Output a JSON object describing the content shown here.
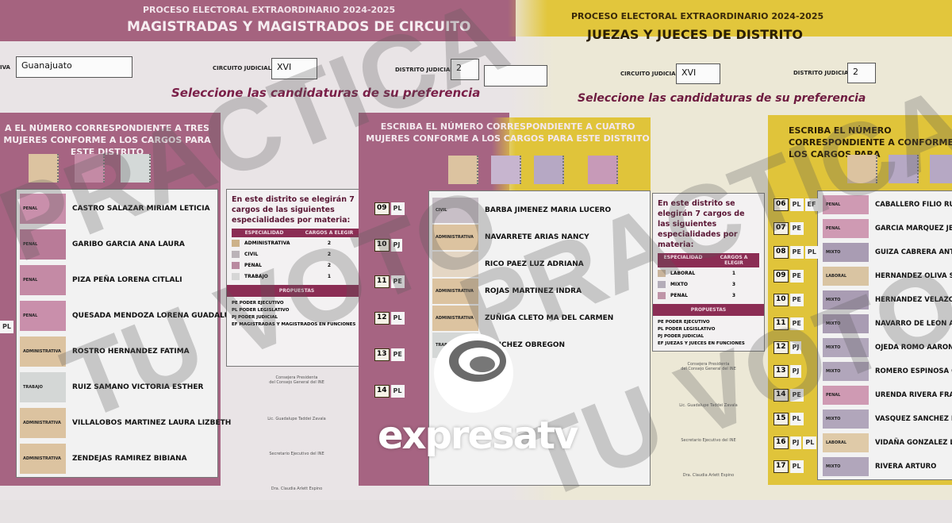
{
  "left_ballot": {
    "process": "PROCESO ELECTORAL EXTRAORDINARIO 2024-2025",
    "title": "MAGISTRADAS Y MAGISTRADOS DE CIRCUITO",
    "entity_label_fragment": "IVA",
    "entity_value": "Guanajuato",
    "circuit_label": "CIRCUITO JUDICIAL",
    "circuit_value": "XVI",
    "district_label": "DISTRITO JUDICIAL",
    "district_value": "2",
    "instruction": "Seleccione las candidaturas de su preferencia",
    "panel_heading": "A EL NÚMERO CORRESPONDIENTE A TRES MUJERES CONFORME A LOS CARGOS PARA ESTE DISTRITO",
    "side_fragment": "PL",
    "candidates": [
      {
        "specialty": "PENAL",
        "name": "CASTRO SALAZAR MIRIAM LETICIA",
        "color": "#c98fab"
      },
      {
        "specialty": "PENAL",
        "name": "GARIBO GARCIA ANA LAURA",
        "color": "#b97b98"
      },
      {
        "specialty": "PENAL",
        "name": "PIZA PEÑA LORENA CITLALI",
        "color": "#c48aa5"
      },
      {
        "specialty": "PENAL",
        "name": "QUESADA MENDOZA LORENA GUADALUPE",
        "color": "#c98fab"
      },
      {
        "specialty": "ADMINISTRATIVA",
        "name": "ROSTRO HERNANDEZ FATIMA",
        "color": "#dcc3a0"
      },
      {
        "specialty": "TRABAJO",
        "name": "RUIZ SAMANO VICTORIA ESTHER",
        "color": "#d4d7d6"
      },
      {
        "specialty": "ADMINISTRATIVA",
        "name": "VILLALOBOS MARTINEZ LAURA LIZBETH",
        "color": "#dcc3a0"
      },
      {
        "specialty": "ADMINISTRATIVA",
        "name": "ZENDEJAS RAMIREZ BIBIANA",
        "color": "#dcc3a0"
      }
    ],
    "info": {
      "text": "En este distrito se elegirán 7 cargos de las siguientes especialidades por materia:",
      "col1": "ESPECIALIDAD",
      "col2": "CARGOS A ELEGIR",
      "rows": [
        {
          "name": "ADMINISTRATIVA",
          "count": "2",
          "color": "#cdb28a"
        },
        {
          "name": "CIVIL",
          "count": "2",
          "color": "#bbb3b8"
        },
        {
          "name": "PENAL",
          "count": "2",
          "color": "#b98aa0"
        },
        {
          "name": "TRABAJO",
          "count": "1",
          "color": "#d6d6d6"
        }
      ],
      "proposals_label": "PROPUESTAS",
      "proposals": [
        "PE  PODER EJECUTIVO",
        "PL  PODER LEGISLATIVO",
        "PJ  PODER JUDICIAL",
        "EF  MAGISTRADAS Y MAGISTRADOS EN FUNCIONES"
      ]
    },
    "signatures": [
      "Consejera Presidenta",
      "del Consejo General del INE",
      "Lic. Guadalupe Taddei Zavala",
      "Secretario Ejecutivo del INE",
      "Dra. Claudia Arlett Espino"
    ]
  },
  "middle_ballot": {
    "heading": "ESCRIBA EL NÚMERO CORRESPONDIENTE A CUATRO MUJERES CONFORME A LOS CARGOS PARA ESTE DISTRITO",
    "numbers": [
      {
        "n": "09",
        "p": "PL"
      },
      {
        "n": "10",
        "p": "PJ"
      },
      {
        "n": "11",
        "p": "PE"
      },
      {
        "n": "12",
        "p": "PL"
      },
      {
        "n": "13",
        "p": "PE"
      },
      {
        "n": "14",
        "p": "PL"
      }
    ],
    "candidates": [
      {
        "specialty": "CIVIL",
        "name": "BARBA JIMENEZ MARIA LUCERO",
        "color": "#c8bfc7"
      },
      {
        "specialty": "ADMINISTRATIVA",
        "name": "NAVARRETE ARIAS NANCY",
        "color": "#dcc3a0"
      },
      {
        "specialty": "",
        "name": "RICO PAEZ LUZ ADRIANA",
        "color": "#e4d6c4"
      },
      {
        "specialty": "ADMINISTRATIVA",
        "name": "ROJAS MARTINEZ INDRA",
        "color": "#dcc3a0"
      },
      {
        "specialty": "ADMINISTRATIVA",
        "name": "ZUÑIGA CLETO MA DEL CARMEN",
        "color": "#dcc3a0"
      },
      {
        "specialty": "TRABAJO",
        "name": "SANCHEZ OBREGON",
        "color": "#d4d7d6"
      }
    ]
  },
  "right_ballot": {
    "process": "PROCESO ELECTORAL EXTRAORDINARIO 2024-2025",
    "title": "JUEZAS Y JUECES DE DISTRITO",
    "circuit_label": "CIRCUITO JUDICIAL",
    "circuit_value": "XVI",
    "district_label": "DISTRITO JUDICIAL",
    "district_value": "2",
    "instruction": "Seleccione las candidaturas de su preferencia",
    "panel_heading": "ESCRIBA EL NÚMERO CORRESPONDIENTE A CONFORME A LOS CARGOS PARA",
    "info": {
      "text": "En este distrito se elegirán 7 cargos de las siguientes especialidades por materia:",
      "col1": "ESPECIALIDAD",
      "col2": "CARGOS A ELEGIR",
      "rows": [
        {
          "name": "LABORAL",
          "count": "1",
          "color": "#c9b49b"
        },
        {
          "name": "MIXTO",
          "count": "3",
          "color": "#b4adb9"
        },
        {
          "name": "PENAL",
          "count": "3",
          "color": "#bf95a8"
        }
      ],
      "proposals_label": "PROPUESTAS",
      "proposals": [
        "PE  PODER EJECUTIVO",
        "PL  PODER LEGISLATIVO",
        "PJ  PODER JUDICIAL",
        "EF  JUEZAS Y JUECES EN FUNCIONES"
      ]
    },
    "signatures": [
      "Consejera Presidenta",
      "del Consejo General del INE",
      "Lic. Guadalupe Taddei Zavala",
      "Secretario Ejecutivo del INE",
      "Dra. Claudia Arlett Espino"
    ],
    "candidates": [
      {
        "n": "06",
        "p": [
          "PL",
          "EF"
        ],
        "specialty": "PENAL",
        "name": "CABALLERO FILIO RUBEN Y",
        "color": "#cf9ab3"
      },
      {
        "n": "07",
        "p": [
          "PE"
        ],
        "specialty": "PENAL",
        "name": "GARCIA MARQUEZ JESUS",
        "color": "#cf9ab3"
      },
      {
        "n": "08",
        "p": [
          "PE",
          "PL"
        ],
        "specialty": "MIXTO",
        "name": "GUIZA CABRERA ANTONIO",
        "color": "#a99cb3"
      },
      {
        "n": "09",
        "p": [
          "PE"
        ],
        "specialty": "LABORAL",
        "name": "HERNANDEZ OLIVA SERGIO",
        "color": "#d9c4a2"
      },
      {
        "n": "10",
        "p": [
          "PE"
        ],
        "specialty": "MIXTO",
        "name": "HERNANDEZ VELAZQUEZ HE",
        "color": "#a99cb3"
      },
      {
        "n": "11",
        "p": [
          "PE"
        ],
        "specialty": "MIXTO",
        "name": "NAVARRO DE LEON ALBERTO",
        "color": "#a99cb3"
      },
      {
        "n": "12",
        "p": [
          "PJ"
        ],
        "specialty": "MIXTO",
        "name": "OJEDA ROMO AARON ISAAC",
        "color": "#b1a6bb"
      },
      {
        "n": "13",
        "p": [
          "PJ"
        ],
        "specialty": "MIXTO",
        "name": "ROMERO ESPINOSA OSCAR M",
        "color": "#b1a6bb"
      },
      {
        "n": "14",
        "p": [
          "PE"
        ],
        "specialty": "PENAL",
        "name": "URENDA RIVERA FRANCISCO",
        "color": "#cf9ab3"
      },
      {
        "n": "15",
        "p": [
          "PL"
        ],
        "specialty": "MIXTO",
        "name": "VASQUEZ SANCHEZ LUIS EDUA",
        "color": "#b1a6bb"
      },
      {
        "n": "16",
        "p": [
          "PJ",
          "PL"
        ],
        "specialty": "LABORAL",
        "name": "VIDAÑA GONZALEZ LUIS ANGEL",
        "color": "#dfcaa8"
      },
      {
        "n": "17",
        "p": [
          "PL"
        ],
        "specialty": "MIXTO",
        "name": "RIVERA ARTURO",
        "color": "#b1a6bb"
      }
    ]
  },
  "watermark": {
    "word1": "PRACTICA",
    "word2": "TU VOTO"
  },
  "logo": {
    "text": "expresatv",
    "color": "#ffffff"
  },
  "colors": {
    "pink_band": "#a5637f",
    "yellow_band": "#e2c63c",
    "instruction_left": "#7a1f48",
    "instruction_right": "#6e1b40"
  }
}
